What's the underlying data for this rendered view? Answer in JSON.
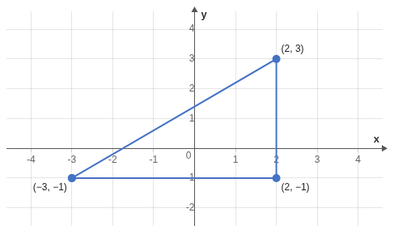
{
  "chart_data": {
    "type": "line",
    "x": [
      -3,
      2,
      2,
      -3
    ],
    "values": [
      -1,
      -1,
      3,
      -1
    ],
    "color": "#4472c4",
    "marker": "o",
    "xlabel": "x",
    "ylabel": "y",
    "xlim": [
      -4.6,
      4.6
    ],
    "ylim": [
      -2.6,
      4.6
    ],
    "xticks": [
      -4,
      -3,
      -2,
      -1,
      1,
      2,
      3,
      4
    ],
    "yticks": [
      -2,
      -1,
      1,
      2,
      3,
      4
    ],
    "grid": true,
    "annotations": [
      {
        "x": -3,
        "y": -1,
        "text": "(−3, −1)"
      },
      {
        "x": 2,
        "y": -1,
        "text": "(2, −1)"
      },
      {
        "x": 2,
        "y": 3,
        "text": "(2, 3)"
      },
      {
        "x": 0,
        "y": 0,
        "text": "0"
      }
    ]
  }
}
